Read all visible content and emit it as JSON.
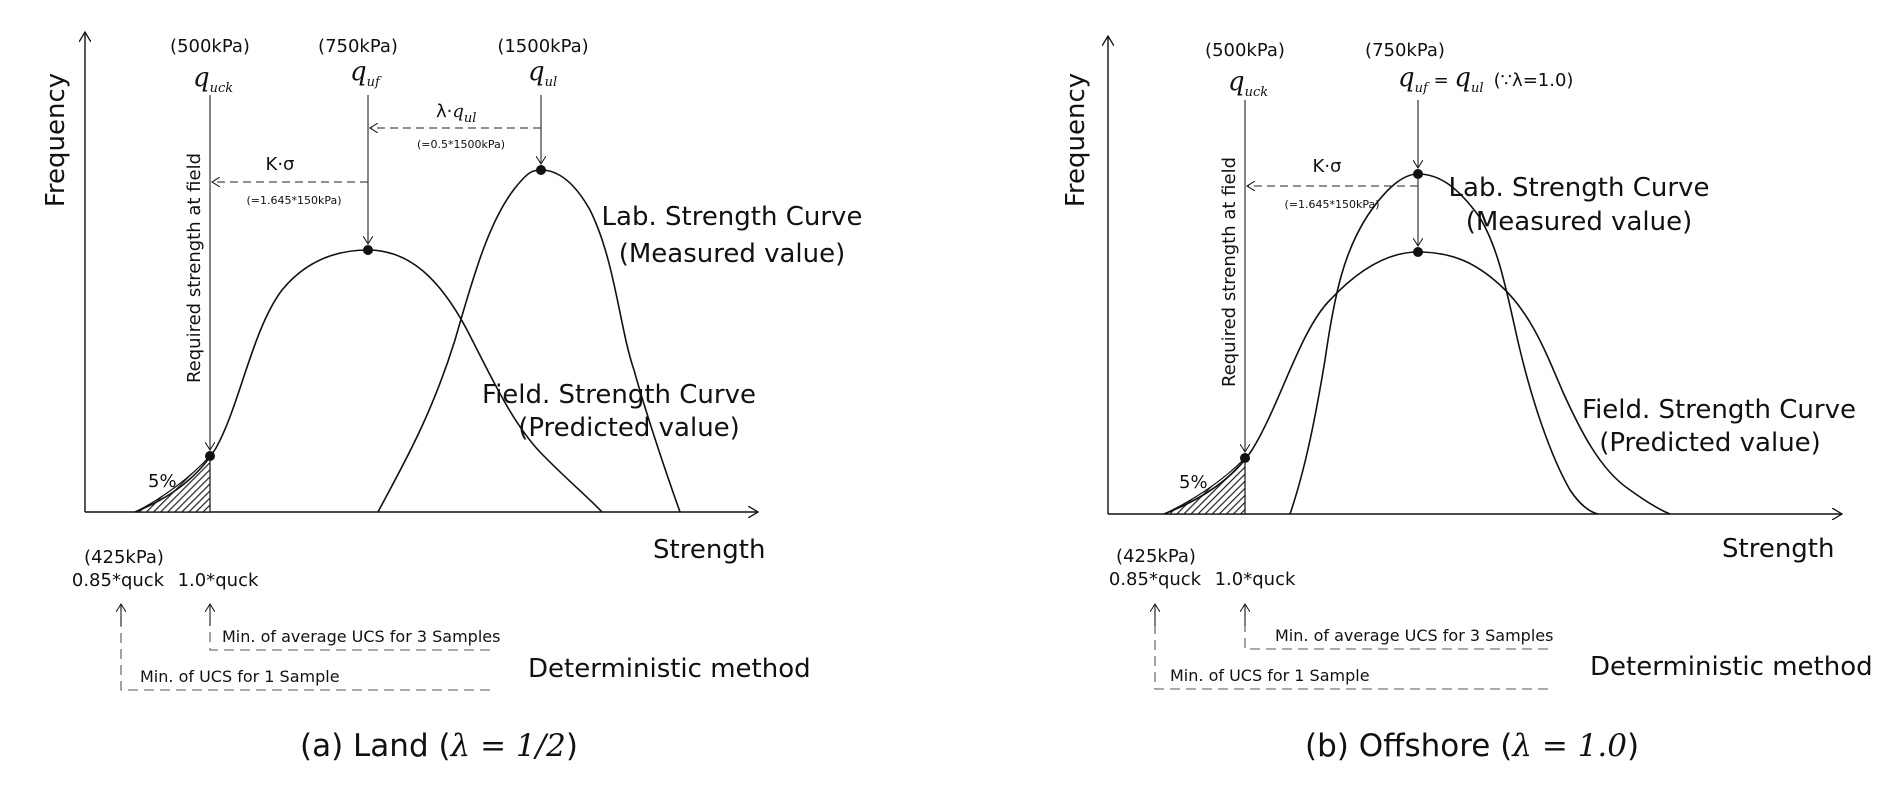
{
  "panel_a": {
    "ylabel": "Frequency",
    "xlabel": "Strength",
    "pressure_1": "(500kPa)",
    "pressure_2": "(750kPa)",
    "pressure_3": "(1500kPa)",
    "sym_1": "q",
    "sub_1": "uck",
    "sym_2": "q",
    "sub_2": "uf",
    "sym_3": "q",
    "sub_3": "ul",
    "lambda_label": "λ·",
    "lambda_sym": "q",
    "lambda_sub": "ul",
    "lambda_note": "(=0.5*1500kPa)",
    "k_sigma": "K·σ",
    "k_note": "(=1.645*150kPa)",
    "required": "Required strength at field",
    "lab_line1": "Lab. Strength Curve",
    "lab_line2": "(Measured value)",
    "field_line1": "Field. Strength Curve",
    "field_line2": "(Predicted value)",
    "percent": "5%",
    "x_note_1": "(425kPa)",
    "x_note_2": "0.85*quck",
    "x_note_3": "1.0*quck",
    "min_avg": "Min. of average UCS for 3 Samples",
    "min_one": "Min. of UCS for 1 Sample",
    "method": "Deterministic method",
    "caption": "(a) Land (",
    "caption_math": "λ = 1/2",
    "caption_end": ")"
  },
  "panel_b": {
    "ylabel": "Frequency",
    "xlabel": "Strength",
    "pressure_1": "(500kPa)",
    "pressure_2": "(750kPa)",
    "sym_1": "q",
    "sub_1": "uck",
    "sym_2": "q",
    "sub_2": "uf",
    "eq": " = ",
    "sym_3": "q",
    "sub_3": "ul",
    "because": "(∵λ=1.0)",
    "k_sigma": "K·σ",
    "k_note": "(=1.645*150kPa)",
    "required": "Required strength at field",
    "lab_line1": "Lab. Strength Curve",
    "lab_line2": "(Measured value)",
    "field_line1": "Field. Strength Curve",
    "field_line2": "(Predicted value)",
    "percent": "5%",
    "x_note_1": "(425kPa)",
    "x_note_2": "0.85*quck",
    "x_note_3": "1.0*quck",
    "min_avg": "Min. of average UCS for 3 Samples",
    "min_one": "Min. of UCS for 1 Sample",
    "method": "Deterministic method",
    "caption": "(b) Offshore (",
    "caption_math": "λ = 1.0",
    "caption_end": ")"
  }
}
